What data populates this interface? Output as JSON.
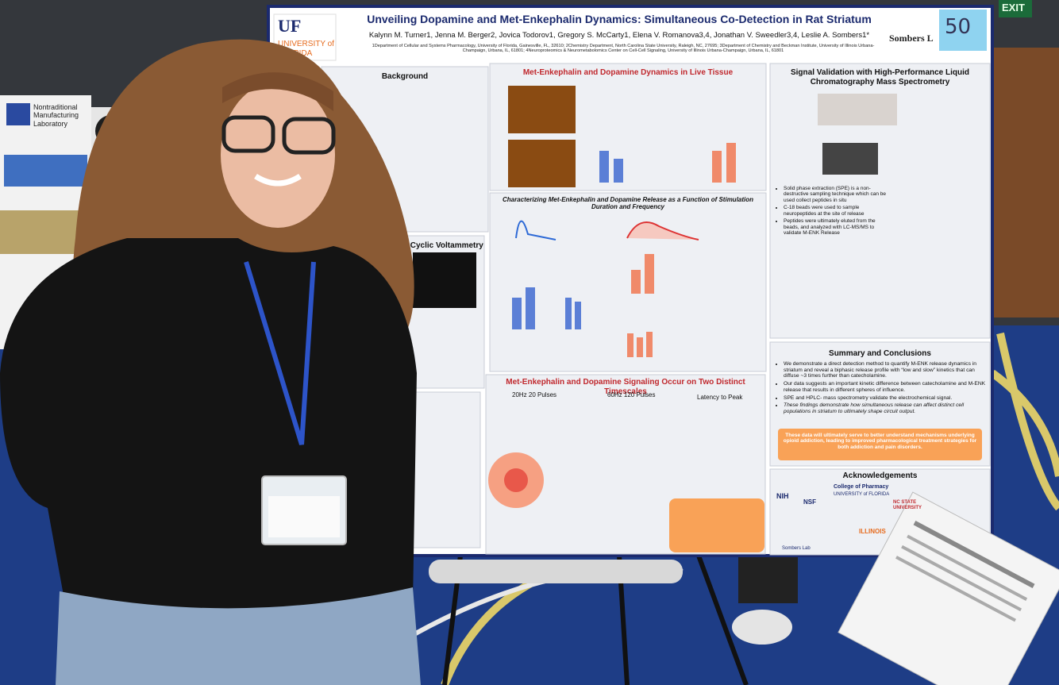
{
  "exit_sign": "EXIT",
  "left_poster": {
    "title": "Nontraditional Manufacturing Laboratory"
  },
  "poster": {
    "logo": {
      "mark": "UF",
      "name": "UNIVERSITY of FLORIDA"
    },
    "title": "Unveiling Dopamine and Met-Enkephalin Dynamics: Simultaneous Co-Detection in Rat Striatum",
    "authors": "Kalynn M. Turner1, Jenna M. Berger2, Jovica Todorov1, Gregory S. McCarty1, Elena V. Romanova3,4, Jonathan V. Sweedler3,4, Leslie A. Sombers1*",
    "affiliations": "1Department of Cellular and Systems Pharmacology, University of Florida, Gainesville, FL, 32610; 2Chemistry Department, North Carolina State University, Raleigh, NC, 27695; 3Department of Chemistry and Beckman Institute, University of Illinois Urbana-Champaign, Urbana, IL, 61801; 4Neuroproteomics & Neurometabolomics Center on Cell-Cell Signaling, University of Illinois Urbana-Champaign, Urbana, IL, 61801",
    "lab": "Sombers L",
    "number": "50",
    "sections": {
      "background": "Background",
      "fscv": "scan Cyclic Voltammetry",
      "live_tissue": "Met-Enkephalin and Dopamine Dynamics in Live Tissue",
      "characterizing": "Characterizing Met-Enkephalin and Dopamine Release as a Function of Stimulation Duration and Frequency",
      "timescales": "Met-Enkephalin and Dopamine Signaling Occur on Two Distinct Timescales",
      "validation": "Signal Validation with High-Performance Liquid Chromatography Mass Spectrometry",
      "summary": "Summary and Conclusions",
      "acknowledgements": "Acknowledgements"
    },
    "timescale_labels": [
      "20Hz 20 Pulses",
      "60Hz 120 Pulses",
      "Latency to Peak"
    ],
    "validation_bullets": [
      "Solid phase extraction (SPE) is a non-destructive sampling technique which can be used collect peptides in situ",
      "C-18 beads were used to sample neuropeptides at the site of release",
      "Peptides were ultimately eluted from the beads, and analyzed with LC-MS/MS to validate M-ENK Release"
    ],
    "summary_bullets": [
      "We demonstrate a direct detection method to quantify M-ENK release dynamics in striatum and reveal a biphasic release profile with “low and slow” kinetics that can diffuse ~3 times further than catecholamine.",
      "Our data suggests an important kinetic difference between catecholamine and M-ENK release that results in different spheres of influence.",
      "SPE and HPLC- mass spectrometry validate the electrochemical signal.",
      "These findings demonstrate how simultaneous release can affect distinct cell populations in striatum to ultimately shape circuit output."
    ],
    "summary_highlight": "These data will ultimately serve to better understand mechanisms underlying opioid addiction, leading to improved pharmacological treatment strategies for both addiction and pain disorders.",
    "acknowledgement_logos": [
      "College of Pharmacy",
      "UNIVERSITY of FLORIDA",
      "NIH",
      "NSF",
      "NC STATE UNIVERSITY",
      "ILLINOIS",
      "Sombers Lab"
    ]
  }
}
